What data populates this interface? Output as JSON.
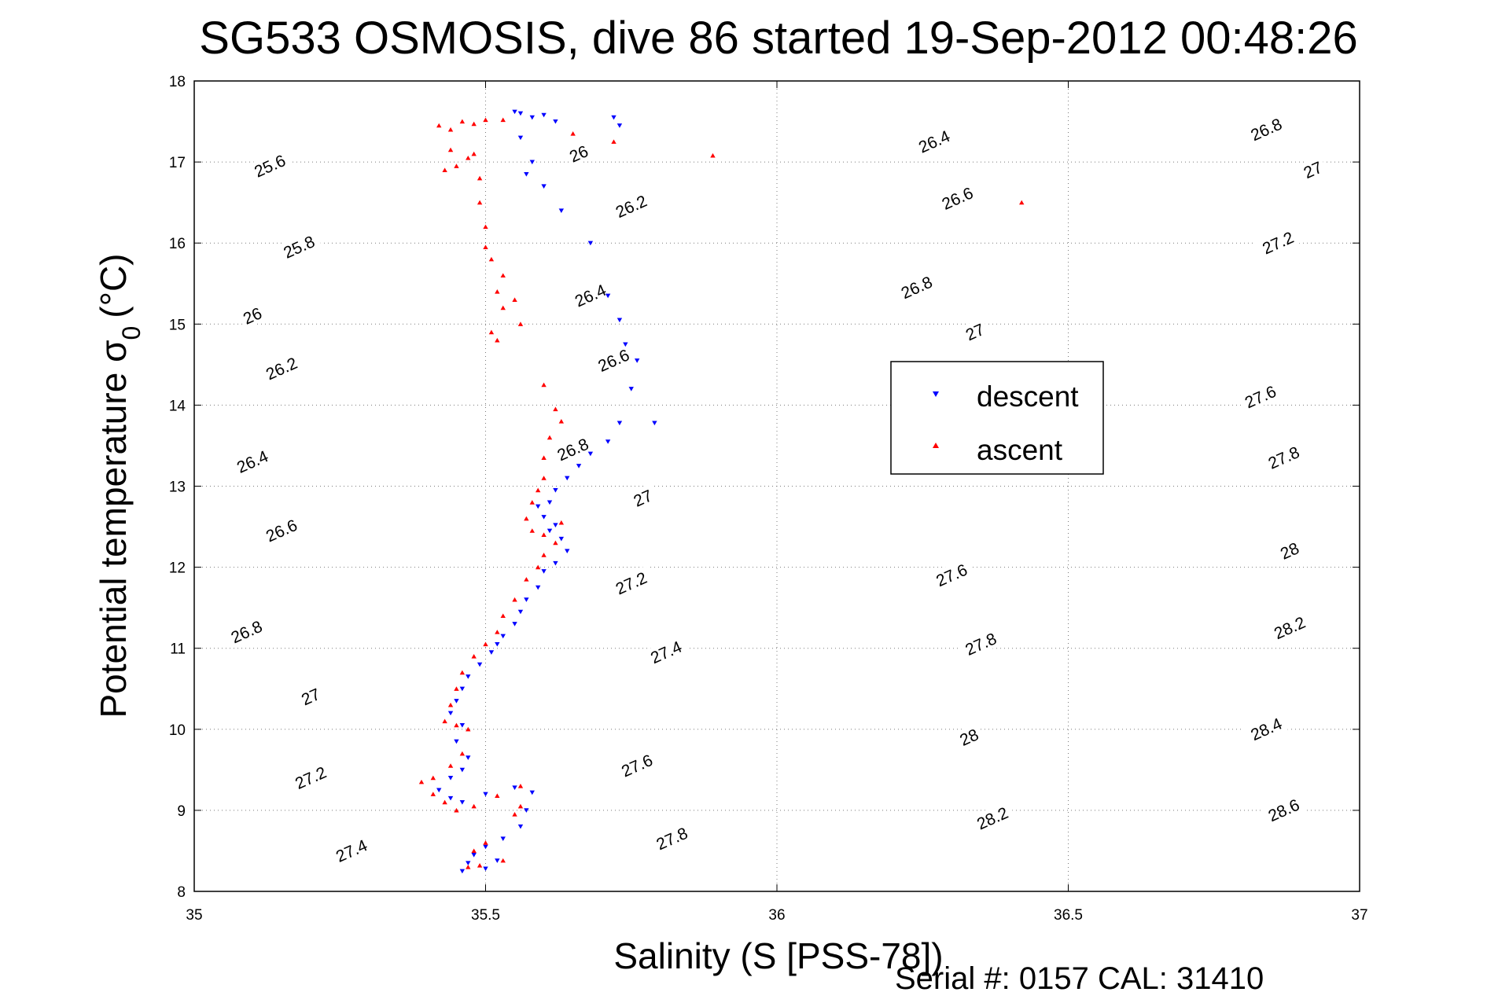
{
  "chart_data": {
    "type": "scatter",
    "title": "SG533 OSMOSIS, dive 86 started 19-Sep-2012 00:48:26",
    "xlabel": "Salinity (S [PSS-78])",
    "ylabel_main": "Potential temperature σ",
    "ylabel_sub": "0",
    "ylabel_unit": "(°C)",
    "footer": "Serial #: 0157  CAL: 31410",
    "xlim": [
      35,
      37
    ],
    "ylim": [
      8,
      18
    ],
    "x_ticks": [
      35,
      35.5,
      36,
      36.5,
      37
    ],
    "x_tick_labels": [
      "35",
      "35.5",
      "36",
      "36.5",
      "37"
    ],
    "y_ticks": [
      8,
      9,
      10,
      11,
      12,
      13,
      14,
      15,
      16,
      17,
      18
    ],
    "y_tick_labels": [
      "8",
      "9",
      "10",
      "11",
      "12",
      "13",
      "14",
      "15",
      "16",
      "17",
      "18"
    ],
    "grid": true,
    "legend_position": "center-right",
    "density_contours": {
      "levels": [
        25.2,
        25.4,
        25.6,
        25.8,
        26.0,
        26.2,
        26.4,
        26.6,
        26.8,
        27.0,
        27.2,
        27.4,
        27.6,
        27.8,
        28.0,
        28.2,
        28.4,
        28.6,
        28.8,
        29.0
      ],
      "labels": [
        {
          "text": "25.6",
          "s": 35.13,
          "t": 16.95
        },
        {
          "text": "25.8",
          "s": 35.18,
          "t": 15.95
        },
        {
          "text": "26",
          "s": 35.1,
          "t": 15.1
        },
        {
          "text": "26.2",
          "s": 35.15,
          "t": 14.45
        },
        {
          "text": "26.4",
          "s": 35.1,
          "t": 13.3
        },
        {
          "text": "26.6",
          "s": 35.15,
          "t": 12.45
        },
        {
          "text": "26.8",
          "s": 35.09,
          "t": 11.2
        },
        {
          "text": "27",
          "s": 35.2,
          "t": 10.4
        },
        {
          "text": "27.2",
          "s": 35.2,
          "t": 9.4
        },
        {
          "text": "27.4",
          "s": 35.27,
          "t": 8.5
        },
        {
          "text": "26",
          "s": 35.66,
          "t": 17.1
        },
        {
          "text": "26.2",
          "s": 35.75,
          "t": 16.45
        },
        {
          "text": "26.4",
          "s": 35.68,
          "t": 15.35
        },
        {
          "text": "26.6",
          "s": 35.72,
          "t": 14.55
        },
        {
          "text": "26.8",
          "s": 35.65,
          "t": 13.45
        },
        {
          "text": "27",
          "s": 35.77,
          "t": 12.85
        },
        {
          "text": "27.2",
          "s": 35.75,
          "t": 11.8
        },
        {
          "text": "27.4",
          "s": 35.81,
          "t": 10.95
        },
        {
          "text": "27.6",
          "s": 35.76,
          "t": 9.55
        },
        {
          "text": "27.8",
          "s": 35.82,
          "t": 8.65
        },
        {
          "text": "26.4",
          "s": 36.27,
          "t": 17.25
        },
        {
          "text": "26.6",
          "s": 36.31,
          "t": 16.55
        },
        {
          "text": "26.8",
          "s": 36.24,
          "t": 15.45
        },
        {
          "text": "27",
          "s": 36.34,
          "t": 14.9
        },
        {
          "text": "27.6",
          "s": 36.3,
          "t": 11.9
        },
        {
          "text": "27.8",
          "s": 36.35,
          "t": 11.05
        },
        {
          "text": "28",
          "s": 36.33,
          "t": 9.9
        },
        {
          "text": "28.2",
          "s": 36.37,
          "t": 8.9
        },
        {
          "text": "26.8",
          "s": 36.84,
          "t": 17.4
        },
        {
          "text": "27",
          "s": 36.92,
          "t": 16.9
        },
        {
          "text": "27.2",
          "s": 36.86,
          "t": 16.0
        },
        {
          "text": "27.6",
          "s": 36.83,
          "t": 14.1
        },
        {
          "text": "27.8",
          "s": 36.87,
          "t": 13.35
        },
        {
          "text": "28",
          "s": 36.88,
          "t": 12.2
        },
        {
          "text": "28.2",
          "s": 36.88,
          "t": 11.25
        },
        {
          "text": "28.4",
          "s": 36.84,
          "t": 10.0
        },
        {
          "text": "28.6",
          "s": 36.87,
          "t": 9.0
        }
      ]
    },
    "series": [
      {
        "name": "descent",
        "color": "#0000ff",
        "marker": "triangle-down",
        "points": [
          [
            35.55,
            17.62
          ],
          [
            35.56,
            17.6
          ],
          [
            35.58,
            17.55
          ],
          [
            35.6,
            17.58
          ],
          [
            35.62,
            17.5
          ],
          [
            35.72,
            17.55
          ],
          [
            35.73,
            17.45
          ],
          [
            35.56,
            17.3
          ],
          [
            35.58,
            17.0
          ],
          [
            35.57,
            16.85
          ],
          [
            35.6,
            16.7
          ],
          [
            35.63,
            16.4
          ],
          [
            35.68,
            16.0
          ],
          [
            35.71,
            15.35
          ],
          [
            35.73,
            15.05
          ],
          [
            35.74,
            14.75
          ],
          [
            35.76,
            14.55
          ],
          [
            35.75,
            14.2
          ],
          [
            35.79,
            13.78
          ],
          [
            35.73,
            13.78
          ],
          [
            35.71,
            13.55
          ],
          [
            35.68,
            13.4
          ],
          [
            35.66,
            13.25
          ],
          [
            35.64,
            13.1
          ],
          [
            35.62,
            12.95
          ],
          [
            35.61,
            12.8
          ],
          [
            35.59,
            12.75
          ],
          [
            35.6,
            12.62
          ],
          [
            35.62,
            12.52
          ],
          [
            35.61,
            12.45
          ],
          [
            35.63,
            12.35
          ],
          [
            35.64,
            12.2
          ],
          [
            35.62,
            12.05
          ],
          [
            35.6,
            11.95
          ],
          [
            35.59,
            11.75
          ],
          [
            35.57,
            11.6
          ],
          [
            35.56,
            11.45
          ],
          [
            35.55,
            11.3
          ],
          [
            35.53,
            11.15
          ],
          [
            35.52,
            11.05
          ],
          [
            35.51,
            10.95
          ],
          [
            35.49,
            10.8
          ],
          [
            35.47,
            10.65
          ],
          [
            35.46,
            10.5
          ],
          [
            35.45,
            10.35
          ],
          [
            35.44,
            10.2
          ],
          [
            35.46,
            10.05
          ],
          [
            35.45,
            9.85
          ],
          [
            35.47,
            9.65
          ],
          [
            35.46,
            9.5
          ],
          [
            35.44,
            9.4
          ],
          [
            35.42,
            9.25
          ],
          [
            35.44,
            9.15
          ],
          [
            35.46,
            9.1
          ],
          [
            35.5,
            9.2
          ],
          [
            35.55,
            9.28
          ],
          [
            35.58,
            9.22
          ],
          [
            35.57,
            9.0
          ],
          [
            35.56,
            8.8
          ],
          [
            35.53,
            8.65
          ],
          [
            35.5,
            8.55
          ],
          [
            35.48,
            8.45
          ],
          [
            35.47,
            8.35
          ],
          [
            35.46,
            8.25
          ],
          [
            35.5,
            8.28
          ],
          [
            35.52,
            8.38
          ]
        ]
      },
      {
        "name": "ascent",
        "color": "#ff0000",
        "marker": "triangle-up",
        "points": [
          [
            35.42,
            17.45
          ],
          [
            35.44,
            17.4
          ],
          [
            35.46,
            17.5
          ],
          [
            35.48,
            17.47
          ],
          [
            35.5,
            17.52
          ],
          [
            35.53,
            17.52
          ],
          [
            35.44,
            17.15
          ],
          [
            35.45,
            16.95
          ],
          [
            35.47,
            17.05
          ],
          [
            35.43,
            16.9
          ],
          [
            35.48,
            17.1
          ],
          [
            35.49,
            16.8
          ],
          [
            35.49,
            16.5
          ],
          [
            35.5,
            16.2
          ],
          [
            35.5,
            15.95
          ],
          [
            35.51,
            15.8
          ],
          [
            35.53,
            15.6
          ],
          [
            35.52,
            15.4
          ],
          [
            35.53,
            15.2
          ],
          [
            35.51,
            14.9
          ],
          [
            35.55,
            15.3
          ],
          [
            35.56,
            15.0
          ],
          [
            35.52,
            14.8
          ],
          [
            35.6,
            14.25
          ],
          [
            35.62,
            13.95
          ],
          [
            35.63,
            13.8
          ],
          [
            35.61,
            13.6
          ],
          [
            35.6,
            13.35
          ],
          [
            35.6,
            13.1
          ],
          [
            35.59,
            12.95
          ],
          [
            35.58,
            12.8
          ],
          [
            35.57,
            12.6
          ],
          [
            35.58,
            12.45
          ],
          [
            35.6,
            12.4
          ],
          [
            35.63,
            12.55
          ],
          [
            35.62,
            12.3
          ],
          [
            35.6,
            12.15
          ],
          [
            35.59,
            12.0
          ],
          [
            35.57,
            11.85
          ],
          [
            35.55,
            11.6
          ],
          [
            35.53,
            11.4
          ],
          [
            35.52,
            11.2
          ],
          [
            35.5,
            11.05
          ],
          [
            35.48,
            10.9
          ],
          [
            35.46,
            10.7
          ],
          [
            35.45,
            10.5
          ],
          [
            35.44,
            10.3
          ],
          [
            35.43,
            10.1
          ],
          [
            35.45,
            10.05
          ],
          [
            35.47,
            10.0
          ],
          [
            35.46,
            9.7
          ],
          [
            35.44,
            9.55
          ],
          [
            35.41,
            9.4
          ],
          [
            35.39,
            9.35
          ],
          [
            35.41,
            9.2
          ],
          [
            35.43,
            9.1
          ],
          [
            35.45,
            9.0
          ],
          [
            35.48,
            9.05
          ],
          [
            35.52,
            9.18
          ],
          [
            35.56,
            9.3
          ],
          [
            35.56,
            9.05
          ],
          [
            35.55,
            8.95
          ],
          [
            35.5,
            8.6
          ],
          [
            35.48,
            8.5
          ],
          [
            35.47,
            8.3
          ],
          [
            35.49,
            8.32
          ],
          [
            35.53,
            8.38
          ],
          [
            35.65,
            17.35
          ],
          [
            35.72,
            17.25
          ],
          [
            35.89,
            17.08
          ],
          [
            36.42,
            16.5
          ]
        ]
      }
    ]
  }
}
